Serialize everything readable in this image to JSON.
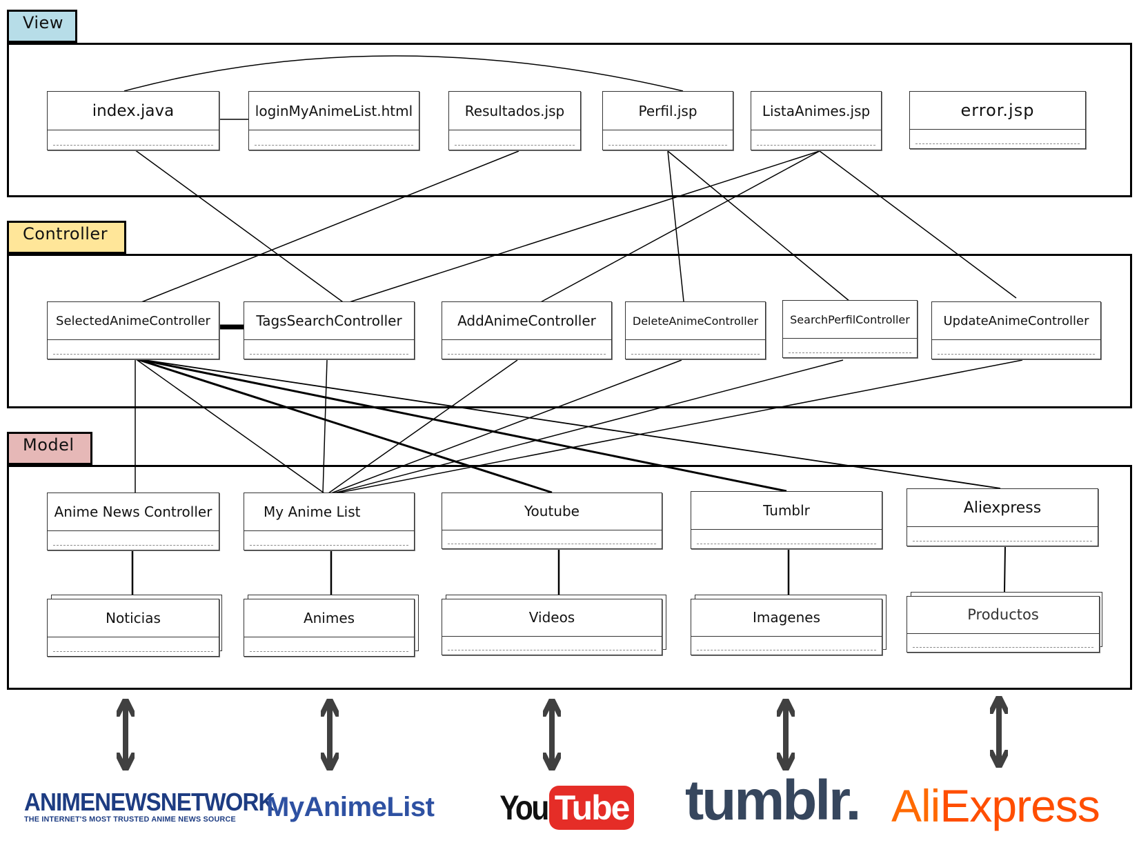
{
  "layers": {
    "view": "View",
    "controller": "Controller",
    "model": "Model"
  },
  "view_boxes": {
    "index": "index.java",
    "login": "loginMyAnimeList.html",
    "resultados": "Resultados.jsp",
    "perfil": "Perfil.jsp",
    "listaanimes": "ListaAnimes.jsp",
    "error": "error.jsp"
  },
  "controller_boxes": {
    "selected": "SelectedAnimeController",
    "tags": "TagsSearchController",
    "add": "AddAnimeController",
    "delete": "DeleteAnimeController",
    "searchperfil": "SearchPerfilController",
    "update": "UpdateAnimeController"
  },
  "model_boxes": {
    "animenews": "Anime News Controller",
    "myanimelist": "My Anime List",
    "youtube": "Youtube",
    "tumblr": "Tumblr",
    "aliexpress": "Aliexpress"
  },
  "entity_boxes": {
    "noticias": "Noticias",
    "animes": "Animes",
    "videos": "Videos",
    "imagenes": "Imagenes",
    "productos": "Productos"
  },
  "logos": {
    "ann_main": "ANIMENEWSNETWORK",
    "ann_sub": "THE INTERNET'S MOST TRUSTED ANIME NEWS SOURCE",
    "mal": "MyAnimeList",
    "youtube_you": "You",
    "youtube_tube": "Tube",
    "tumblr": "tumblr.",
    "aliexpress_ali": "Ali",
    "aliexpress_express": "Express"
  },
  "colors": {
    "view_tag": "#b7dde8",
    "controller_tag": "#ffe699",
    "model_tag": "#e6b8b7",
    "arrow": "#404040"
  }
}
